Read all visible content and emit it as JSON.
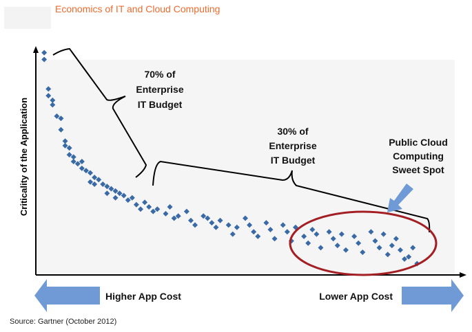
{
  "title": "Economics of IT and Cloud Computing",
  "source": "Source: Gartner (October 2012)",
  "colors": {
    "title": "#ED6B2F",
    "points": "#3A6AA6",
    "ellipse": "#A31F24",
    "arrows": "#6F9AD6",
    "plot_bg": "#F5F5F5"
  },
  "chart_data": {
    "type": "scatter",
    "title": "Economics of IT and Cloud Computing",
    "xlabel_left": "Higher App Cost",
    "xlabel_right": "Lower App Cost",
    "ylabel": "Criticality of the Application",
    "xlim": [
      0,
      100
    ],
    "ylim": [
      0,
      100
    ],
    "grid": false,
    "marker": "diamond",
    "points": [
      [
        2,
        98
      ],
      [
        2,
        95
      ],
      [
        3,
        82
      ],
      [
        3,
        79
      ],
      [
        4,
        77
      ],
      [
        4,
        75
      ],
      [
        5,
        70
      ],
      [
        6,
        69
      ],
      [
        6,
        64
      ],
      [
        7,
        59
      ],
      [
        7,
        57
      ],
      [
        8,
        56
      ],
      [
        8,
        53
      ],
      [
        9,
        52
      ],
      [
        9,
        50
      ],
      [
        10,
        49
      ],
      [
        11,
        50
      ],
      [
        11,
        47
      ],
      [
        12,
        46
      ],
      [
        13,
        45
      ],
      [
        14,
        43
      ],
      [
        13,
        41
      ],
      [
        14,
        40
      ],
      [
        15,
        42
      ],
      [
        16,
        40
      ],
      [
        17,
        39
      ],
      [
        17,
        36
      ],
      [
        18,
        38
      ],
      [
        19,
        37
      ],
      [
        19,
        34
      ],
      [
        20,
        36
      ],
      [
        21,
        35
      ],
      [
        22,
        33
      ],
      [
        23,
        34
      ],
      [
        24,
        31
      ],
      [
        25,
        29
      ],
      [
        26,
        32
      ],
      [
        27,
        30
      ],
      [
        28,
        28
      ],
      [
        29,
        29
      ],
      [
        31,
        27
      ],
      [
        32,
        30
      ],
      [
        33,
        25
      ],
      [
        34,
        26
      ],
      [
        36,
        28
      ],
      [
        37,
        24
      ],
      [
        38,
        22
      ],
      [
        40,
        26
      ],
      [
        41,
        25
      ],
      [
        42,
        23
      ],
      [
        43,
        21
      ],
      [
        44,
        24
      ],
      [
        46,
        22
      ],
      [
        47,
        18
      ],
      [
        48,
        21
      ],
      [
        50,
        25
      ],
      [
        51,
        22
      ],
      [
        52,
        19
      ],
      [
        53,
        17
      ],
      [
        55,
        23
      ],
      [
        56,
        20
      ],
      [
        57,
        16
      ],
      [
        59,
        22
      ],
      [
        60,
        19
      ],
      [
        61,
        15
      ],
      [
        62,
        21
      ],
      [
        64,
        17
      ],
      [
        65,
        14
      ],
      [
        66,
        20
      ],
      [
        67,
        18
      ],
      [
        68,
        12
      ],
      [
        70,
        19
      ],
      [
        71,
        16
      ],
      [
        72,
        13
      ],
      [
        73,
        18
      ],
      [
        74,
        11
      ],
      [
        76,
        17
      ],
      [
        77,
        14
      ],
      [
        78,
        10
      ],
      [
        80,
        19
      ],
      [
        81,
        15
      ],
      [
        82,
        12
      ],
      [
        83,
        18
      ],
      [
        84,
        9
      ],
      [
        85,
        13
      ],
      [
        86,
        16
      ],
      [
        87,
        11
      ],
      [
        88,
        7
      ],
      [
        89,
        8
      ],
      [
        90,
        12
      ],
      [
        91,
        5
      ]
    ],
    "annotations": {
      "bracket_70": [
        "70% of",
        "Enterprise",
        "IT Budget"
      ],
      "bracket_30": [
        "30% of",
        "Enterprise",
        "IT Budget"
      ],
      "sweet_spot": [
        "Public Cloud",
        "Computing",
        "Sweet Spot"
      ]
    }
  }
}
